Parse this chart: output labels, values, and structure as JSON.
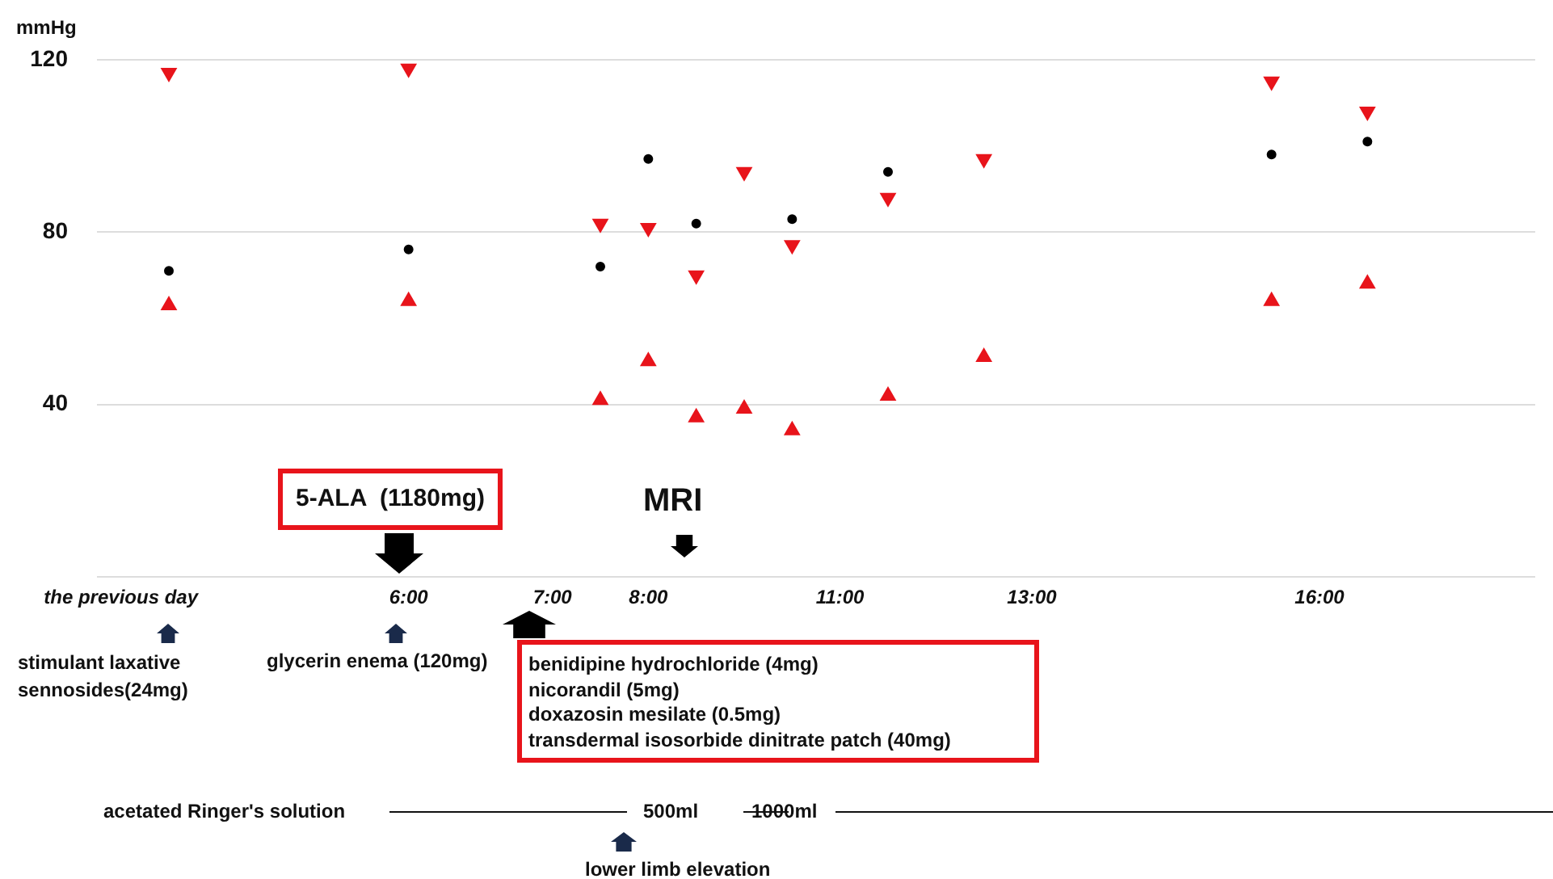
{
  "chart_data": {
    "type": "scatter",
    "ylabel": "mmHg",
    "categories": [
      "the previous day",
      null,
      null,
      null,
      null,
      null,
      "6:00",
      null,
      null,
      "7:00",
      null,
      "8:00",
      null,
      null,
      null,
      "11:00",
      null,
      null,
      null,
      "13:00",
      null,
      null,
      null,
      null,
      null,
      "16:00",
      null,
      null,
      null,
      null
    ],
    "series": [
      {
        "color": "#e8141b",
        "marker": "triangle",
        "values": [
          null,
          117,
          null,
          null,
          null,
          null,
          118,
          null,
          null,
          null,
          82,
          81,
          70,
          94,
          77,
          null,
          88,
          null,
          97,
          null,
          null,
          null,
          null,
          null,
          115,
          null,
          108,
          null,
          null,
          null
        ]
      },
      {
        "color": "#e8141b",
        "marker": "triangle",
        "values": [
          null,
          63,
          null,
          null,
          null,
          null,
          64,
          null,
          null,
          null,
          41,
          50,
          37,
          39,
          34,
          null,
          42,
          null,
          51,
          null,
          null,
          null,
          null,
          null,
          64,
          null,
          68,
          null,
          null,
          null
        ]
      },
      {
        "color": "#000000",
        "marker": "circle",
        "values": [
          null,
          71,
          null,
          null,
          null,
          null,
          76,
          null,
          null,
          null,
          72,
          97,
          82,
          null,
          83,
          null,
          94,
          null,
          null,
          null,
          null,
          null,
          null,
          null,
          98,
          null,
          101,
          null,
          null,
          null
        ]
      }
    ],
    "ylim": [
      0,
      120
    ],
    "yticks": [
      {
        "value": 0,
        "label": null
      },
      40,
      80,
      120
    ],
    "grid": "y",
    "legend": false,
    "annotations": [
      "5-ALA  (1180mg)",
      "MRI",
      "stimulant laxative\nsennosides(24mg)",
      "glycerin enema (120mg)",
      "benidipine hydrochloride (4mg)\nnicorandil (5mg)\ndoxazosin mesilate (0.5mg)\ntransdermal isosorbide dinitrate patch (40mg)",
      "acetated Ringer's solution",
      "500ml",
      "1000ml",
      "lower limb elevation"
    ]
  }
}
